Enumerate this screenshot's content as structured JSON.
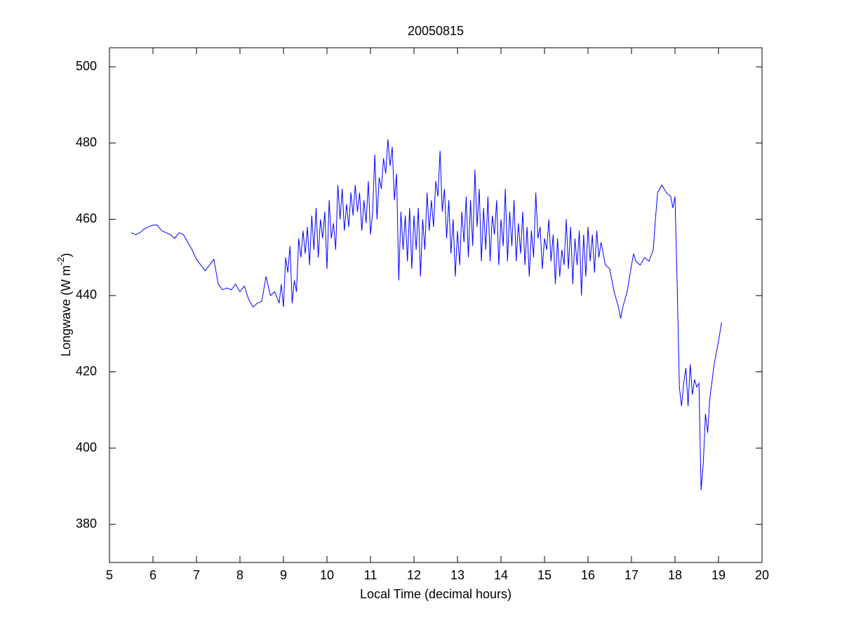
{
  "chart_data": {
    "type": "line",
    "title": "20050815",
    "xlabel": "Local Time (decimal hours)",
    "ylabel": [
      "Longwave (W m",
      "-2",
      ")"
    ],
    "color": "#0000ff",
    "xlim": [
      5,
      20
    ],
    "xticks": [
      5,
      6,
      7,
      8,
      9,
      10,
      11,
      12,
      13,
      14,
      15,
      16,
      17,
      18,
      19,
      20
    ],
    "ylim": [
      370,
      505
    ],
    "yticks": [
      380,
      400,
      420,
      440,
      460,
      480,
      500
    ],
    "grid": false,
    "x": [
      5.5,
      5.6,
      5.7,
      5.8,
      5.9,
      6.0,
      6.1,
      6.2,
      6.3,
      6.4,
      6.5,
      6.6,
      6.7,
      6.8,
      6.9,
      7.0,
      7.1,
      7.2,
      7.3,
      7.4,
      7.5,
      7.6,
      7.7,
      7.8,
      7.9,
      8.0,
      8.1,
      8.2,
      8.3,
      8.4,
      8.5,
      8.6,
      8.7,
      8.8,
      8.9,
      8.95,
      9.0,
      9.05,
      9.1,
      9.15,
      9.2,
      9.25,
      9.3,
      9.35,
      9.4,
      9.45,
      9.5,
      9.55,
      9.6,
      9.65,
      9.7,
      9.75,
      9.8,
      9.85,
      9.9,
      9.95,
      10.0,
      10.05,
      10.1,
      10.15,
      10.2,
      10.25,
      10.3,
      10.35,
      10.4,
      10.45,
      10.5,
      10.55,
      10.6,
      10.65,
      10.7,
      10.75,
      10.8,
      10.85,
      10.9,
      10.95,
      11.0,
      11.05,
      11.1,
      11.15,
      11.2,
      11.25,
      11.3,
      11.35,
      11.4,
      11.45,
      11.5,
      11.55,
      11.6,
      11.65,
      11.7,
      11.75,
      11.8,
      11.85,
      11.9,
      11.95,
      12.0,
      12.05,
      12.1,
      12.15,
      12.2,
      12.25,
      12.3,
      12.35,
      12.4,
      12.45,
      12.5,
      12.55,
      12.6,
      12.65,
      12.7,
      12.75,
      12.8,
      12.85,
      12.9,
      12.95,
      13.0,
      13.05,
      13.1,
      13.15,
      13.2,
      13.25,
      13.3,
      13.35,
      13.4,
      13.45,
      13.5,
      13.55,
      13.6,
      13.65,
      13.7,
      13.75,
      13.8,
      13.85,
      13.9,
      13.95,
      14.0,
      14.05,
      14.1,
      14.15,
      14.2,
      14.25,
      14.3,
      14.35,
      14.4,
      14.45,
      14.5,
      14.55,
      14.6,
      14.65,
      14.7,
      14.75,
      14.8,
      14.85,
      14.9,
      14.95,
      15.0,
      15.05,
      15.1,
      15.15,
      15.2,
      15.25,
      15.3,
      15.35,
      15.4,
      15.45,
      15.5,
      15.55,
      15.6,
      15.65,
      15.7,
      15.75,
      15.8,
      15.85,
      15.9,
      15.95,
      16.0,
      16.05,
      16.1,
      16.15,
      16.2,
      16.25,
      16.3,
      16.4,
      16.5,
      16.6,
      16.7,
      16.75,
      16.8,
      16.9,
      17.0,
      17.05,
      17.1,
      17.2,
      17.3,
      17.4,
      17.5,
      17.55,
      17.6,
      17.7,
      17.8,
      17.9,
      17.95,
      18.0,
      18.05,
      18.1,
      18.15,
      18.2,
      18.25,
      18.3,
      18.35,
      18.4,
      18.45,
      18.5,
      18.55,
      18.6,
      18.65,
      18.7,
      18.75,
      18.8,
      18.9,
      19.0,
      19.07
    ],
    "values": [
      456.5,
      456,
      456.5,
      457.5,
      458,
      458.5,
      458.5,
      457,
      456.5,
      456,
      455,
      456.5,
      456,
      454,
      452,
      449.5,
      448,
      446.5,
      448,
      449.5,
      443,
      441.5,
      442,
      441.5,
      443,
      441,
      442.5,
      439,
      437,
      438,
      438.5,
      445,
      440,
      441,
      438,
      443,
      437,
      450,
      446,
      453,
      438,
      444,
      441,
      455,
      450,
      457,
      451,
      458,
      448,
      461,
      452,
      463,
      450,
      460,
      455,
      462,
      447,
      465,
      455,
      459,
      452,
      469,
      460,
      468,
      457,
      464,
      458,
      467,
      461,
      469,
      462,
      467,
      457,
      465,
      459,
      470,
      456,
      462,
      477,
      460,
      471,
      468,
      476,
      472,
      481,
      474,
      479,
      465,
      472,
      444,
      462,
      452,
      461,
      449,
      463,
      447,
      461,
      452,
      463,
      445,
      460,
      452,
      467,
      457,
      465,
      458,
      470,
      466,
      478,
      462,
      468,
      455,
      465,
      451,
      460,
      445,
      457,
      448,
      462,
      454,
      466,
      450,
      465,
      453,
      473,
      458,
      468,
      449,
      463,
      452,
      466,
      449,
      461,
      456,
      465,
      448,
      460,
      453,
      468,
      449,
      462,
      453,
      465,
      449,
      459,
      451,
      462,
      448,
      458,
      445,
      457,
      450,
      467,
      455,
      458,
      447,
      455,
      452,
      460,
      449,
      456,
      443,
      455,
      445,
      452,
      448,
      460,
      447,
      458,
      443,
      455,
      448,
      457,
      440,
      456,
      445,
      458,
      449,
      456,
      446,
      457,
      450,
      454,
      448,
      447,
      441,
      437,
      434,
      437,
      441,
      448,
      451,
      449,
      448,
      450,
      449,
      452,
      460,
      467,
      469,
      467,
      466,
      463,
      466,
      443,
      416,
      411,
      417,
      421,
      411,
      422,
      414,
      418,
      416,
      417,
      389,
      396,
      409,
      404,
      413,
      422,
      428,
      433
    ]
  }
}
